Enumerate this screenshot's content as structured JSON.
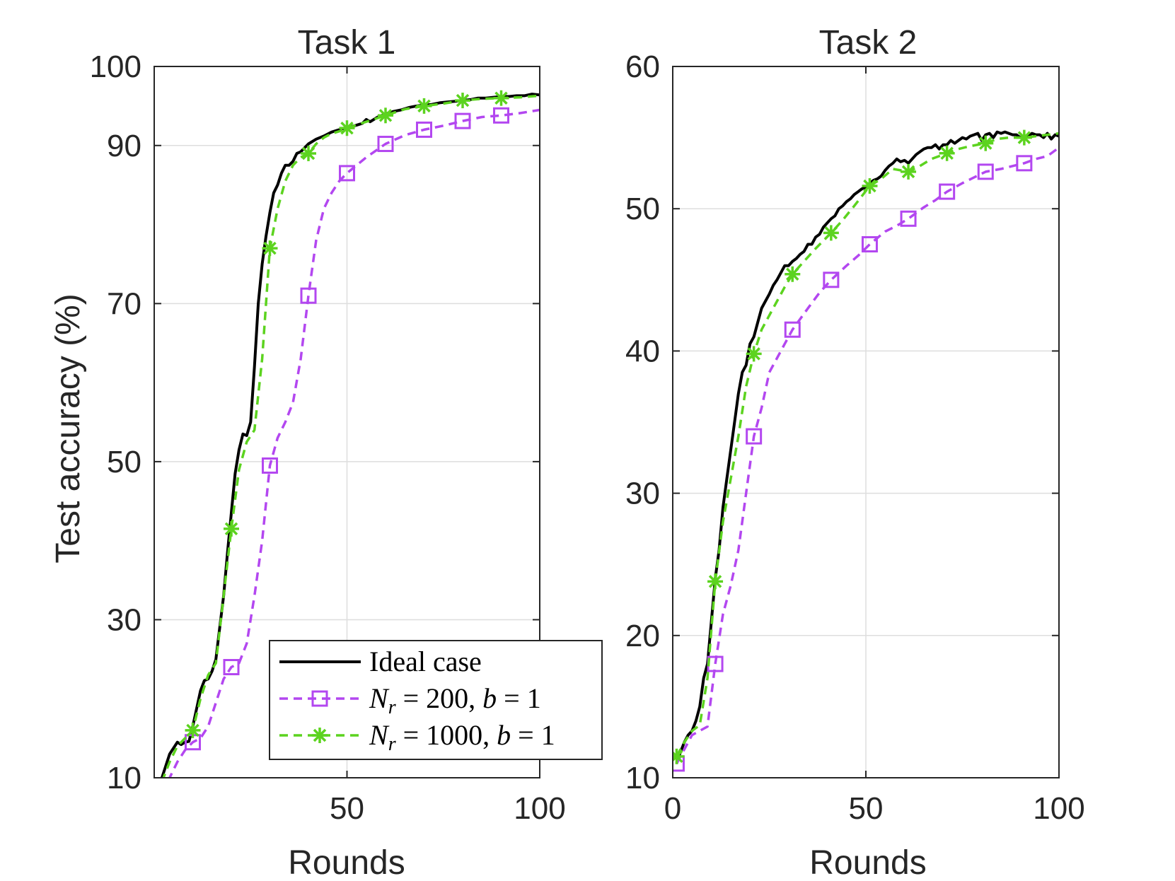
{
  "chart_data": [
    {
      "type": "line",
      "title": "Task 1",
      "xlabel": "Rounds",
      "ylabel": "Test accuracy (%)",
      "xlim": [
        0,
        100
      ],
      "ylim": [
        10,
        100
      ],
      "xticks": [
        "50",
        "100"
      ],
      "yticks": [
        "10",
        "30",
        "50",
        "70",
        "90",
        "100"
      ],
      "grid": true,
      "legend_position": "bottom-right",
      "series": [
        {
          "name": "Ideal case",
          "color": "#000000",
          "style": "solid",
          "marker": "none",
          "x": [
            2,
            4,
            6,
            7,
            8,
            9,
            10,
            12,
            13,
            14,
            15,
            16,
            17,
            18,
            19,
            20,
            21,
            22,
            23,
            24,
            25,
            26,
            27,
            28,
            29,
            30,
            31,
            32,
            33,
            34,
            35,
            36,
            37,
            38,
            40,
            42,
            44,
            46,
            48,
            50,
            52,
            54,
            55,
            56,
            58,
            60,
            62,
            64,
            66,
            68,
            70,
            72,
            74,
            76,
            78,
            80,
            82,
            84,
            86,
            88,
            90,
            92,
            94,
            96,
            98,
            100
          ],
          "y": [
            10,
            13,
            14.5,
            14.2,
            14.5,
            14.6,
            16.5,
            21,
            22.3,
            22.5,
            23.5,
            25,
            29,
            33,
            38.5,
            43.5,
            48.5,
            51.5,
            53.5,
            53.3,
            55,
            62,
            70,
            75,
            78.5,
            81.5,
            84,
            85,
            86.5,
            87.5,
            87.5,
            88,
            89,
            89.2,
            90.2,
            90.8,
            91.2,
            91.7,
            92,
            92.3,
            92.5,
            92.8,
            93.3,
            93,
            93.6,
            94,
            94.3,
            94.5,
            94.8,
            95,
            95.1,
            95.2,
            95.4,
            95.5,
            95.6,
            95.7,
            95.8,
            96,
            96,
            96.1,
            96.2,
            96.2,
            96.3,
            96.3,
            96.5,
            96.4
          ]
        },
        {
          "name": "N_r = 200, b = 1",
          "color": "#b347f0",
          "style": "dashed",
          "marker": "square",
          "marker_x": [
            10,
            20,
            30,
            40,
            50,
            60,
            70,
            80,
            90
          ],
          "x": [
            2,
            4,
            6,
            8,
            10,
            12,
            14,
            16,
            18,
            20,
            22,
            24,
            26,
            28,
            30,
            32,
            34,
            36,
            38,
            40,
            42,
            44,
            46,
            48,
            50,
            55,
            60,
            65,
            70,
            75,
            80,
            85,
            90,
            95,
            100
          ],
          "y": [
            8,
            10,
            12,
            13.5,
            14.5,
            15,
            16.5,
            19.5,
            22.5,
            24,
            24.5,
            27,
            33,
            40,
            49.5,
            53,
            55,
            57.5,
            63,
            71,
            78,
            82,
            84,
            85.5,
            86.5,
            88.5,
            90.2,
            91.3,
            92,
            92.5,
            93.1,
            93.6,
            93.8,
            94.1,
            94.5
          ]
        },
        {
          "name": "N_r = 1000, b = 1",
          "color": "#5cd31f",
          "style": "dashed",
          "marker": "asterisk",
          "marker_x": [
            10,
            20,
            30,
            40,
            50,
            60,
            70,
            80,
            90
          ],
          "x": [
            2,
            4,
            6,
            8,
            10,
            12,
            14,
            16,
            18,
            20,
            22,
            24,
            26,
            28,
            30,
            32,
            34,
            36,
            38,
            40,
            42,
            44,
            46,
            48,
            50,
            55,
            60,
            65,
            70,
            75,
            80,
            85,
            90,
            95,
            100
          ],
          "y": [
            9.5,
            12,
            14,
            15,
            16,
            20,
            23,
            24.5,
            33,
            41.5,
            49,
            52.5,
            54,
            63,
            77,
            82,
            85.5,
            87.5,
            88.5,
            89,
            90.2,
            91,
            91.5,
            91.8,
            92.2,
            93,
            93.8,
            94.6,
            95,
            95.3,
            95.7,
            95.9,
            96,
            96.1,
            96.3
          ]
        }
      ]
    },
    {
      "type": "line",
      "title": "Task 2",
      "xlabel": "Rounds",
      "ylabel": "",
      "xlim": [
        0,
        100
      ],
      "ylim": [
        10,
        60
      ],
      "xticks": [
        "0",
        "50",
        "100"
      ],
      "yticks": [
        "10",
        "20",
        "30",
        "40",
        "50",
        "60"
      ],
      "grid": true,
      "series": [
        {
          "name": "Ideal case",
          "color": "#000000",
          "style": "solid",
          "marker": "none",
          "x": [
            1,
            2,
            3,
            4,
            5,
            6,
            7,
            8,
            9,
            10,
            11,
            12,
            13,
            14,
            15,
            16,
            17,
            18,
            19,
            20,
            21,
            22,
            23,
            24,
            25,
            26,
            27,
            28,
            29,
            30,
            31,
            32,
            33,
            34,
            35,
            36,
            37,
            38,
            39,
            40,
            41,
            42,
            43,
            44,
            45,
            46,
            47,
            48,
            49,
            50,
            51,
            52,
            53,
            54,
            55,
            56,
            57,
            58,
            59,
            60,
            61,
            62,
            63,
            64,
            65,
            66,
            67,
            68,
            69,
            70,
            71,
            72,
            73,
            74,
            75,
            76,
            77,
            78,
            79,
            80,
            81,
            82,
            83,
            84,
            85,
            86,
            87,
            88,
            89,
            90,
            91,
            92,
            93,
            94,
            95,
            96,
            97,
            98,
            99,
            100
          ],
          "y": [
            11,
            11.8,
            12.5,
            13,
            13.3,
            14,
            15,
            17,
            18,
            21,
            24,
            26,
            29,
            31,
            33,
            35,
            37,
            38.5,
            39,
            40.5,
            41,
            42,
            43,
            43.5,
            44,
            44.6,
            45,
            45.5,
            46,
            46,
            46.3,
            46.5,
            46.8,
            47,
            47.5,
            47.5,
            48,
            48.2,
            48.7,
            49,
            49.3,
            49.5,
            50,
            50.2,
            50.5,
            50.7,
            51,
            51.2,
            51.4,
            51.5,
            51.8,
            52,
            52.1,
            52.3,
            52.7,
            53,
            53.2,
            53.5,
            53.3,
            53.4,
            53.2,
            53.5,
            53.8,
            54,
            54.2,
            54.3,
            54.3,
            54.5,
            54.2,
            54.5,
            54.5,
            54.8,
            54.6,
            54.8,
            55,
            54.9,
            55.1,
            55.2,
            55.3,
            54.8,
            55.2,
            55.3,
            55,
            55.4,
            55.3,
            55.4,
            55.3,
            55.2,
            55.2,
            55,
            55.1,
            55.1,
            55.3,
            55.2,
            55.2,
            55,
            55.3,
            54.9,
            55.2,
            55.1
          ]
        },
        {
          "name": "N_r = 200, b = 1",
          "color": "#b347f0",
          "style": "dashed",
          "marker": "square",
          "marker_x": [
            1,
            11,
            21,
            31,
            41,
            51,
            61,
            71,
            81,
            91
          ],
          "x": [
            1,
            3,
            5,
            7,
            9,
            11,
            13,
            15,
            17,
            19,
            21,
            23,
            25,
            27,
            29,
            31,
            35,
            38,
            41,
            45,
            48,
            51,
            55,
            58,
            61,
            65,
            68,
            71,
            75,
            78,
            81,
            85,
            88,
            91,
            94,
            97,
            100
          ],
          "y": [
            11,
            12,
            13,
            13.3,
            13.6,
            18,
            21.5,
            23.5,
            26,
            30,
            34,
            36,
            38.5,
            39.5,
            40.5,
            41.5,
            43,
            44.1,
            45,
            46,
            46.7,
            47.5,
            48.4,
            48.8,
            49.3,
            50.1,
            50.6,
            51.2,
            51.8,
            52.2,
            52.6,
            52.8,
            53,
            53.2,
            53.5,
            53.7,
            54.3
          ]
        },
        {
          "name": "N_r = 1000, b = 1",
          "color": "#5cd31f",
          "style": "dashed",
          "marker": "asterisk",
          "marker_x": [
            1,
            11,
            21,
            31,
            41,
            51,
            61,
            71,
            81,
            91
          ],
          "x": [
            1,
            3,
            5,
            7,
            9,
            11,
            13,
            15,
            17,
            19,
            21,
            23,
            25,
            27,
            29,
            31,
            34,
            37,
            41,
            44,
            47,
            51,
            54,
            57,
            61,
            64,
            67,
            71,
            74,
            77,
            81,
            84,
            87,
            91,
            94,
            97,
            100
          ],
          "y": [
            11.5,
            12.5,
            13.3,
            13.7,
            17,
            23.8,
            28,
            31,
            34,
            37.5,
            39.8,
            41.5,
            42.5,
            43.5,
            44.5,
            45.4,
            46.3,
            47.2,
            48.3,
            49.2,
            50.2,
            51.6,
            52.1,
            52.8,
            52.6,
            53,
            53.5,
            53.9,
            54.2,
            54.4,
            54.6,
            54.9,
            55,
            55,
            55.1,
            55.2,
            55.3
          ]
        }
      ]
    }
  ],
  "legend": {
    "ideal": "Ideal case",
    "s1_sym": "N",
    "s1_sub": "r",
    "s1_rest": " = 200, ",
    "s1_b": "b",
    "s1_end": " = 1",
    "s2_sym": "N",
    "s2_sub": "r",
    "s2_rest": " = 1000, ",
    "s2_b": "b",
    "s2_end": " = 1"
  }
}
